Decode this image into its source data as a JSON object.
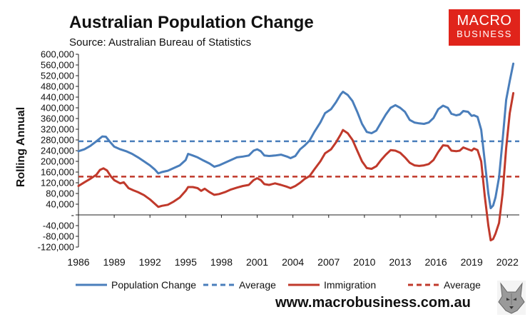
{
  "header": {
    "title": "Australian Population Change",
    "subtitle": "Source: Australian Bureau of Statistics"
  },
  "logo": {
    "line1": "MACRO",
    "line2": "BUSINESS",
    "color": "#e0241b"
  },
  "footer": {
    "url": "www.macrobusiness.com.au"
  },
  "colors": {
    "population": "#4a7ebb",
    "immigration": "#c0392b"
  },
  "chart_data": {
    "type": "line",
    "ylabel": "Rolling Annual",
    "ylim": [
      -120000,
      600000
    ],
    "yticks": [
      600000,
      560000,
      520000,
      480000,
      440000,
      400000,
      360000,
      320000,
      280000,
      240000,
      200000,
      160000,
      120000,
      80000,
      40000,
      0,
      -40000,
      -80000,
      -120000
    ],
    "ytick_labels": [
      "600,000",
      "560,000",
      "520,000",
      "480,000",
      "440,000",
      "400,000",
      "360,000",
      "320,000",
      "280,000",
      "240,000",
      "200,000",
      "160,000",
      "120,000",
      "80,000",
      "40,000",
      "-",
      "-40,000",
      "-80,000",
      "-120,000"
    ],
    "xlim": [
      1986,
      2023
    ],
    "xticks": [
      1986,
      1989,
      1992,
      1995,
      1998,
      2001,
      2004,
      2007,
      2010,
      2013,
      2016,
      2019,
      2022
    ],
    "xtick_labels": [
      "1986",
      "1989",
      "1992",
      "1995",
      "1998",
      "2001",
      "2004",
      "2007",
      "2010",
      "2013",
      "2016",
      "2019",
      "2022"
    ],
    "series": [
      {
        "name": "Population Change",
        "style": "solid",
        "color": "#4a7ebb",
        "points": [
          [
            1986.0,
            238000
          ],
          [
            1986.5,
            245000
          ],
          [
            1987.0,
            258000
          ],
          [
            1987.5,
            275000
          ],
          [
            1988.0,
            293000
          ],
          [
            1988.3,
            292000
          ],
          [
            1988.7,
            270000
          ],
          [
            1989.0,
            255000
          ],
          [
            1989.5,
            245000
          ],
          [
            1990.0,
            238000
          ],
          [
            1990.5,
            228000
          ],
          [
            1991.0,
            215000
          ],
          [
            1991.5,
            200000
          ],
          [
            1992.0,
            185000
          ],
          [
            1992.4,
            170000
          ],
          [
            1992.7,
            155000
          ],
          [
            1993.0,
            160000
          ],
          [
            1993.5,
            165000
          ],
          [
            1994.0,
            175000
          ],
          [
            1994.5,
            185000
          ],
          [
            1995.0,
            205000
          ],
          [
            1995.2,
            228000
          ],
          [
            1995.6,
            222000
          ],
          [
            1996.0,
            215000
          ],
          [
            1996.5,
            203000
          ],
          [
            1997.0,
            192000
          ],
          [
            1997.4,
            180000
          ],
          [
            1997.8,
            185000
          ],
          [
            1998.3,
            195000
          ],
          [
            1998.8,
            205000
          ],
          [
            1999.3,
            215000
          ],
          [
            1999.8,
            218000
          ],
          [
            2000.3,
            222000
          ],
          [
            2000.7,
            240000
          ],
          [
            2001.0,
            245000
          ],
          [
            2001.3,
            238000
          ],
          [
            2001.6,
            222000
          ],
          [
            2002.0,
            220000
          ],
          [
            2002.5,
            222000
          ],
          [
            2003.0,
            225000
          ],
          [
            2003.5,
            218000
          ],
          [
            2003.8,
            212000
          ],
          [
            2004.2,
            220000
          ],
          [
            2004.6,
            245000
          ],
          [
            2005.0,
            260000
          ],
          [
            2005.4,
            278000
          ],
          [
            2005.8,
            310000
          ],
          [
            2006.3,
            345000
          ],
          [
            2006.7,
            380000
          ],
          [
            2007.2,
            395000
          ],
          [
            2007.6,
            420000
          ],
          [
            2008.0,
            450000
          ],
          [
            2008.2,
            460000
          ],
          [
            2008.6,
            448000
          ],
          [
            2009.0,
            425000
          ],
          [
            2009.4,
            385000
          ],
          [
            2009.8,
            340000
          ],
          [
            2010.2,
            310000
          ],
          [
            2010.6,
            305000
          ],
          [
            2011.0,
            315000
          ],
          [
            2011.4,
            345000
          ],
          [
            2011.8,
            375000
          ],
          [
            2012.2,
            400000
          ],
          [
            2012.6,
            410000
          ],
          [
            2013.0,
            400000
          ],
          [
            2013.4,
            385000
          ],
          [
            2013.8,
            355000
          ],
          [
            2014.2,
            345000
          ],
          [
            2014.6,
            342000
          ],
          [
            2015.0,
            340000
          ],
          [
            2015.4,
            345000
          ],
          [
            2015.8,
            362000
          ],
          [
            2016.2,
            395000
          ],
          [
            2016.6,
            408000
          ],
          [
            2017.0,
            400000
          ],
          [
            2017.3,
            378000
          ],
          [
            2017.7,
            372000
          ],
          [
            2018.0,
            375000
          ],
          [
            2018.3,
            388000
          ],
          [
            2018.7,
            385000
          ],
          [
            2019.0,
            370000
          ],
          [
            2019.2,
            372000
          ],
          [
            2019.5,
            366000
          ],
          [
            2019.8,
            318000
          ],
          [
            2020.1,
            200000
          ],
          [
            2020.4,
            80000
          ],
          [
            2020.6,
            25000
          ],
          [
            2020.8,
            35000
          ],
          [
            2021.0,
            65000
          ],
          [
            2021.3,
            140000
          ],
          [
            2021.6,
            280000
          ],
          [
            2021.9,
            430000
          ],
          [
            2022.2,
            500000
          ],
          [
            2022.5,
            565000
          ]
        ]
      },
      {
        "name": "Average",
        "style": "dashed",
        "color": "#4a7ebb",
        "points": [
          [
            1986.0,
            275000
          ],
          [
            2023.0,
            275000
          ]
        ]
      },
      {
        "name": "Immigration",
        "style": "solid",
        "color": "#c0392b",
        "points": [
          [
            1986.0,
            108000
          ],
          [
            1986.5,
            122000
          ],
          [
            1987.0,
            135000
          ],
          [
            1987.5,
            150000
          ],
          [
            1987.8,
            168000
          ],
          [
            1988.1,
            174000
          ],
          [
            1988.4,
            166000
          ],
          [
            1988.7,
            145000
          ],
          [
            1989.0,
            130000
          ],
          [
            1989.5,
            118000
          ],
          [
            1989.8,
            122000
          ],
          [
            1990.2,
            100000
          ],
          [
            1990.6,
            92000
          ],
          [
            1991.0,
            85000
          ],
          [
            1991.5,
            74000
          ],
          [
            1992.0,
            58000
          ],
          [
            1992.4,
            42000
          ],
          [
            1992.7,
            30000
          ],
          [
            1993.0,
            34000
          ],
          [
            1993.5,
            38000
          ],
          [
            1994.0,
            50000
          ],
          [
            1994.5,
            65000
          ],
          [
            1995.0,
            90000
          ],
          [
            1995.2,
            104000
          ],
          [
            1995.6,
            104000
          ],
          [
            1996.0,
            100000
          ],
          [
            1996.3,
            90000
          ],
          [
            1996.6,
            98000
          ],
          [
            1997.0,
            85000
          ],
          [
            1997.4,
            75000
          ],
          [
            1997.8,
            78000
          ],
          [
            1998.3,
            85000
          ],
          [
            1998.8,
            95000
          ],
          [
            1999.3,
            102000
          ],
          [
            1999.8,
            108000
          ],
          [
            2000.3,
            112000
          ],
          [
            2000.7,
            130000
          ],
          [
            2001.0,
            137000
          ],
          [
            2001.3,
            130000
          ],
          [
            2001.6,
            115000
          ],
          [
            2002.0,
            112000
          ],
          [
            2002.5,
            118000
          ],
          [
            2003.0,
            112000
          ],
          [
            2003.5,
            105000
          ],
          [
            2003.8,
            100000
          ],
          [
            2004.2,
            108000
          ],
          [
            2004.6,
            120000
          ],
          [
            2005.0,
            135000
          ],
          [
            2005.4,
            145000
          ],
          [
            2005.8,
            170000
          ],
          [
            2006.3,
            200000
          ],
          [
            2006.7,
            230000
          ],
          [
            2007.2,
            245000
          ],
          [
            2007.6,
            270000
          ],
          [
            2008.0,
            300000
          ],
          [
            2008.2,
            317000
          ],
          [
            2008.6,
            305000
          ],
          [
            2009.0,
            280000
          ],
          [
            2009.4,
            240000
          ],
          [
            2009.8,
            200000
          ],
          [
            2010.2,
            175000
          ],
          [
            2010.6,
            172000
          ],
          [
            2011.0,
            182000
          ],
          [
            2011.4,
            205000
          ],
          [
            2011.8,
            225000
          ],
          [
            2012.2,
            242000
          ],
          [
            2012.6,
            240000
          ],
          [
            2013.0,
            232000
          ],
          [
            2013.4,
            215000
          ],
          [
            2013.8,
            195000
          ],
          [
            2014.2,
            185000
          ],
          [
            2014.6,
            183000
          ],
          [
            2015.0,
            185000
          ],
          [
            2015.4,
            190000
          ],
          [
            2015.8,
            205000
          ],
          [
            2016.2,
            235000
          ],
          [
            2016.6,
            260000
          ],
          [
            2017.0,
            258000
          ],
          [
            2017.3,
            240000
          ],
          [
            2017.7,
            238000
          ],
          [
            2018.0,
            240000
          ],
          [
            2018.3,
            252000
          ],
          [
            2018.7,
            245000
          ],
          [
            2019.0,
            240000
          ],
          [
            2019.2,
            248000
          ],
          [
            2019.5,
            242000
          ],
          [
            2019.8,
            200000
          ],
          [
            2020.1,
            70000
          ],
          [
            2020.4,
            -40000
          ],
          [
            2020.6,
            -95000
          ],
          [
            2020.8,
            -90000
          ],
          [
            2021.0,
            -70000
          ],
          [
            2021.3,
            -30000
          ],
          [
            2021.6,
            80000
          ],
          [
            2021.9,
            250000
          ],
          [
            2022.2,
            380000
          ],
          [
            2022.5,
            455000
          ]
        ]
      },
      {
        "name": "Average",
        "style": "dashed",
        "color": "#c0392b",
        "points": [
          [
            1986.0,
            143000
          ],
          [
            2023.0,
            143000
          ]
        ]
      }
    ],
    "legend_position": "bottom",
    "grid": false
  }
}
